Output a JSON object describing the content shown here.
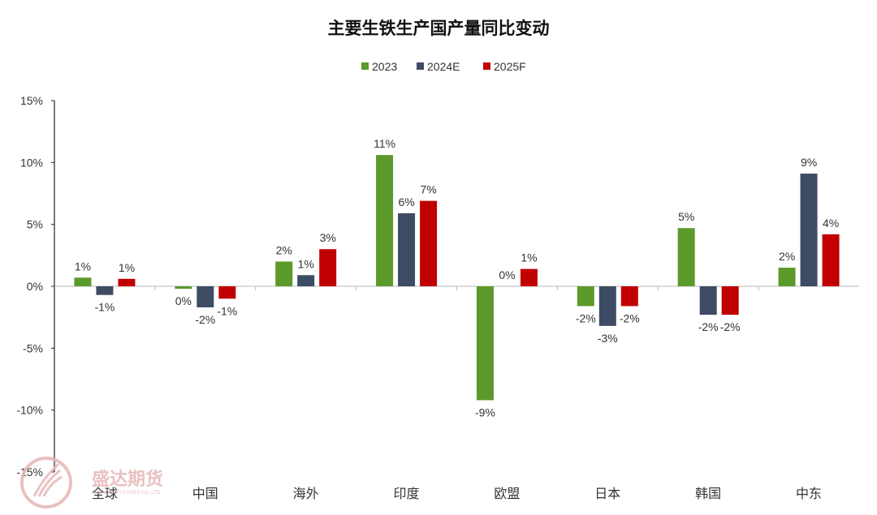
{
  "chart_data": {
    "type": "bar",
    "title": "主要生铁生产国产量同比变动",
    "categories": [
      "全球",
      "中国",
      "海外",
      "印度",
      "欧盟",
      "日本",
      "韩国",
      "中东"
    ],
    "series": [
      {
        "name": "2023",
        "color": "#5b9a2a",
        "values": [
          0.7,
          -0.2,
          2.0,
          10.6,
          -9.2,
          -1.6,
          4.7,
          1.5
        ],
        "labels": [
          "1%",
          "0%",
          "2%",
          "11%",
          "-9%",
          "-2%",
          "5%",
          "2%"
        ]
      },
      {
        "name": "2024E",
        "color": "#3d4b63",
        "values": [
          -0.7,
          -1.7,
          0.9,
          5.9,
          0.0,
          -3.2,
          -2.3,
          9.1
        ],
        "labels": [
          "-1%",
          "-2%",
          "1%",
          "6%",
          "0%",
          "-3%",
          "-2%",
          "9%"
        ]
      },
      {
        "name": "2025F",
        "color": "#c00000",
        "values": [
          0.6,
          -1.0,
          3.0,
          6.9,
          1.4,
          -1.6,
          -2.3,
          4.2
        ],
        "labels": [
          "1%",
          "-1%",
          "3%",
          "7%",
          "1%",
          "-2%",
          "-2%",
          "4%"
        ]
      }
    ],
    "yticks": [
      "15%",
      "10%",
      "5%",
      "0%",
      "-5%",
      "-10%",
      "-15%"
    ],
    "ytick_values": [
      15,
      10,
      5,
      0,
      -5,
      -10,
      -15
    ],
    "ylim": [
      -15,
      15
    ],
    "xlabel": "",
    "ylabel": "",
    "grid": false,
    "legend_position": "top-center"
  },
  "watermark": {
    "text": "盛达期货",
    "subtext": "SHENGDA FUTURES CO.,LTD."
  }
}
